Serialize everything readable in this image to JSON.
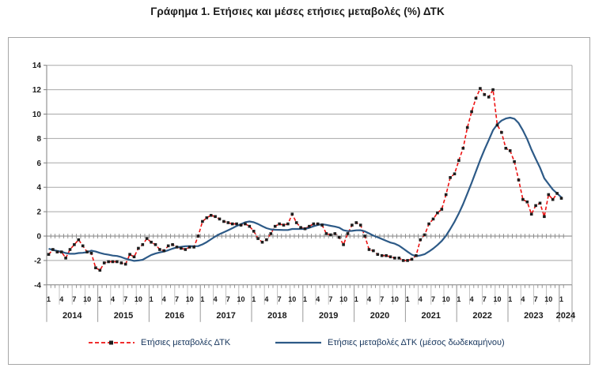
{
  "title": "Γράφημα 1. Ετήσιες και μέσες ετήσιες μεταβολές (%) ΔΤΚ",
  "colors": {
    "annual_line": "#ee1111",
    "annual_marker": "#1c1c1c",
    "avg12_line": "#2d5a87",
    "gridline": "#a8a8a8",
    "axis": "#7f7f7f",
    "legend_text": "#17365d"
  },
  "legend": [
    {
      "label": "Ετήσιες μεταβολές ΔΤΚ"
    },
    {
      "label": "Ετήσιες μεταβολές ΔΤΚ (μέσος δωδεκαμήνου)"
    }
  ],
  "chart_data": {
    "type": "line",
    "title": "Γράφημα 1. Ετήσιες και μέσες ετήσιες μεταβολές (%) ΔΤΚ",
    "xlabel": "",
    "ylabel": "",
    "ylim": [
      -4,
      14
    ],
    "y_ticks": [
      14,
      12,
      10,
      8,
      6,
      4,
      2,
      0,
      -2,
      -4
    ],
    "grid": true,
    "legend_position": "bottom",
    "x_start": "2014-01",
    "x_end": "2024-01",
    "years": [
      "2014",
      "2015",
      "2016",
      "2017",
      "2018",
      "2019",
      "2020",
      "2021",
      "2022",
      "2023",
      "2024"
    ],
    "month_labels": [
      "1",
      "4",
      "7",
      "10"
    ],
    "series": [
      {
        "name": "Ετήσιες μεταβολές ΔΤΚ",
        "color": "#ee1111",
        "dashed": true,
        "markers": true,
        "values": [
          -1.5,
          -1.1,
          -1.3,
          -1.3,
          -1.8,
          -1.1,
          -0.7,
          -0.3,
          -0.8,
          -1.3,
          -1.4,
          -2.6,
          -2.8,
          -2.2,
          -2.1,
          -2.1,
          -2.1,
          -2.2,
          -2.3,
          -1.5,
          -1.7,
          -1.0,
          -0.7,
          -0.2,
          -0.5,
          -0.7,
          -1.1,
          -1.2,
          -0.8,
          -0.7,
          -0.9,
          -1.0,
          -1.1,
          -0.9,
          -0.9,
          0.0,
          1.2,
          1.5,
          1.7,
          1.6,
          1.4,
          1.2,
          1.1,
          1.0,
          1.0,
          0.9,
          1.0,
          0.8,
          0.4,
          -0.2,
          -0.5,
          -0.3,
          0.2,
          0.8,
          1.0,
          0.9,
          1.0,
          1.8,
          1.1,
          0.7,
          0.6,
          0.8,
          1.0,
          1.0,
          0.9,
          0.2,
          0.1,
          0.2,
          -0.1,
          -0.7,
          0.2,
          0.9,
          1.1,
          0.9,
          0.0,
          -1.1,
          -1.2,
          -1.5,
          -1.6,
          -1.6,
          -1.7,
          -1.8,
          -1.8,
          -2.0,
          -2.0,
          -1.9,
          -1.6,
          -0.3,
          0.1,
          1.0,
          1.4,
          1.9,
          2.2,
          3.4,
          4.8,
          5.1,
          6.2,
          7.2,
          8.9,
          10.2,
          11.3,
          12.1,
          11.6,
          11.4,
          12.0,
          9.1,
          8.5,
          7.2,
          7.0,
          6.1,
          4.6,
          3.0,
          2.8,
          1.8,
          2.5,
          2.7,
          1.6,
          3.4,
          3.0,
          3.5,
          3.1
        ]
      },
      {
        "name": "Ετήσιες μεταβολές ΔΤΚ (μέσος δωδεκαμήνου)",
        "color": "#2d5a87",
        "dashed": false,
        "markers": false,
        "values": [
          -1.04,
          -1.13,
          -1.22,
          -1.28,
          -1.39,
          -1.45,
          -1.45,
          -1.39,
          -1.37,
          -1.32,
          -1.19,
          -1.27,
          -1.38,
          -1.47,
          -1.53,
          -1.6,
          -1.63,
          -1.72,
          -1.85,
          -1.95,
          -2.03,
          -2.0,
          -1.94,
          -1.74,
          -1.55,
          -1.43,
          -1.34,
          -1.27,
          -1.16,
          -1.03,
          -0.92,
          -0.88,
          -0.83,
          -0.82,
          -0.83,
          -0.82,
          -0.68,
          -0.49,
          -0.26,
          -0.03,
          0.16,
          0.32,
          0.48,
          0.65,
          0.83,
          0.98,
          1.13,
          1.2,
          1.13,
          0.99,
          0.81,
          0.65,
          0.55,
          0.52,
          0.51,
          0.5,
          0.5,
          0.58,
          0.58,
          0.58,
          0.59,
          0.68,
          0.8,
          0.91,
          0.97,
          0.92,
          0.84,
          0.78,
          0.69,
          0.48,
          0.41,
          0.43,
          0.47,
          0.48,
          0.39,
          0.22,
          0.04,
          -0.1,
          -0.24,
          -0.39,
          -0.53,
          -0.62,
          -0.78,
          -1.03,
          -1.28,
          -1.52,
          -1.65,
          -1.58,
          -1.48,
          -1.27,
          -1.02,
          -0.73,
          -0.4,
          0.03,
          0.58,
          1.18,
          1.86,
          2.62,
          3.49,
          4.37,
          5.3,
          6.23,
          7.08,
          7.87,
          8.68,
          9.16,
          9.47,
          9.64,
          9.71,
          9.62,
          9.26,
          8.66,
          7.95,
          7.09,
          6.33,
          5.61,
          4.74,
          4.27,
          3.81,
          3.5,
          3.18
        ]
      }
    ]
  }
}
